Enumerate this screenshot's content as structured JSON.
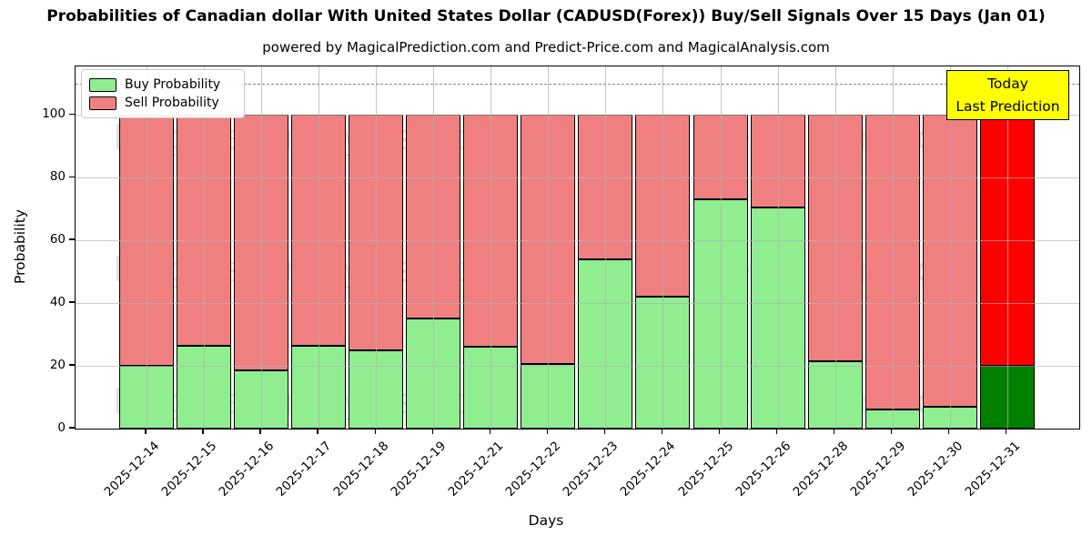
{
  "header": {
    "title": "Probabilities of Canadian dollar With United States Dollar (CADUSD(Forex)) Buy/Sell Signals Over 15 Days (Jan 01)",
    "subtitle": "powered by MagicalPrediction.com and Predict-Price.com and MagicalAnalysis.com"
  },
  "legend": {
    "items": [
      {
        "label": "Buy Probability",
        "color": "#90EE90"
      },
      {
        "label": "Sell Probability",
        "color": "#F08080"
      }
    ]
  },
  "annotation_box": {
    "line1": "Today",
    "line2": "Last Prediction",
    "bg_color": "#FFFF00"
  },
  "watermarks": {
    "texts": [
      "MagicalAnalysis.com",
      "MagicalPrediction.com"
    ]
  },
  "chart_data": {
    "type": "bar",
    "stacked": true,
    "title": "Probabilities of Canadian dollar With United States Dollar (CADUSD(Forex)) Buy/Sell Signals Over 15 Days (Jan 01)",
    "subtitle": "powered by MagicalPrediction.com and Predict-Price.com and MagicalAnalysis.com",
    "xlabel": "Days",
    "ylabel": "Probability",
    "categories": [
      "2025-12-14",
      "2025-12-15",
      "2025-12-16",
      "2025-12-17",
      "2025-12-18",
      "2025-12-19",
      "2025-12-21",
      "2025-12-22",
      "2025-12-23",
      "2025-12-24",
      "2025-12-25",
      "2025-12-26",
      "2025-12-28",
      "2025-12-29",
      "2025-12-30",
      "2025-12-31"
    ],
    "series": [
      {
        "name": "Buy Probability",
        "color": "#90EE90",
        "last_bar_color": "#008000",
        "values": [
          20,
          26.5,
          18.5,
          26.5,
          25,
          35,
          26,
          20.5,
          54,
          42,
          73,
          70.5,
          21.5,
          6,
          7,
          20
        ]
      },
      {
        "name": "Sell Probability",
        "color": "#F08080",
        "last_bar_color": "#FF0000",
        "values": [
          80,
          73.5,
          81.5,
          73.5,
          75,
          65,
          74,
          79.5,
          46,
          58,
          27,
          29.5,
          78.5,
          94,
          93,
          80
        ]
      }
    ],
    "yticks": [
      0,
      20,
      40,
      60,
      80,
      100
    ],
    "ylim": [
      0,
      115.5
    ],
    "dashed_line_y": 110,
    "grid": true,
    "legend_position": "upper left",
    "last_bar_highlighted": true
  }
}
